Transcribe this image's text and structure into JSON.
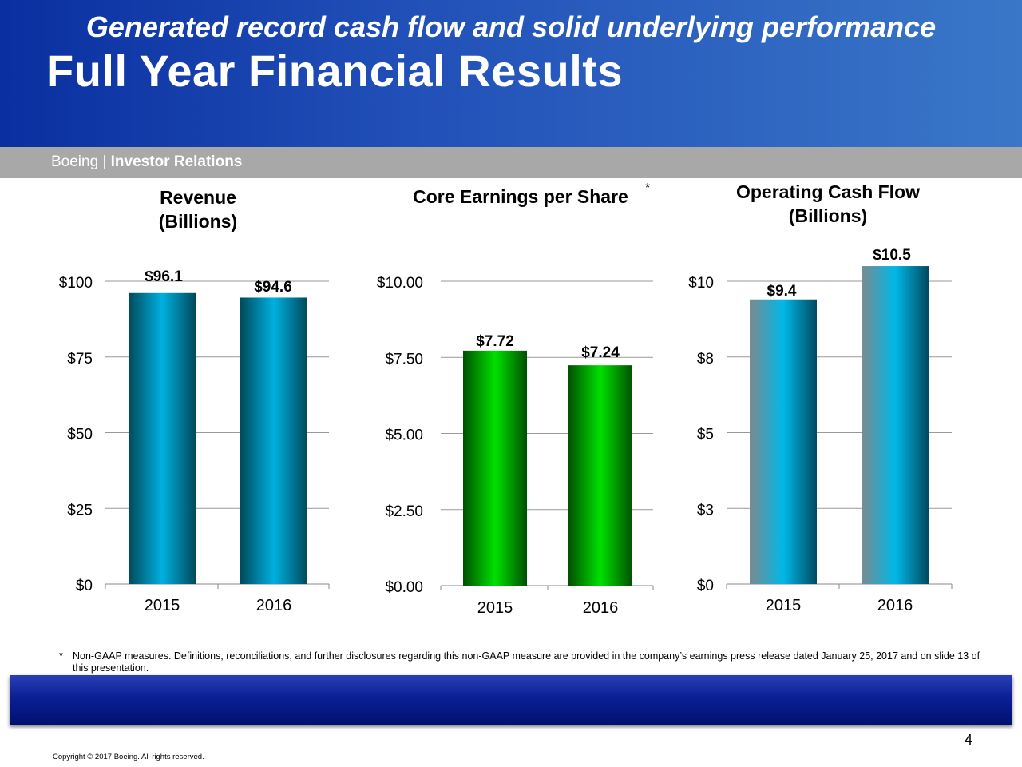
{
  "header": {
    "title": "Full Year Financial Results",
    "brand_prefix": "Boeing | ",
    "brand_bold": "Investor Relations"
  },
  "colors": {
    "header_start": "#0a2fa0",
    "header_end": "#3a77c8",
    "subbar": "#a8a8a8",
    "banner": "#0b1f95",
    "revenue_bar": "#00b0e0",
    "eps_bar": "#00e000",
    "cashflow_bar": "#00b8e8"
  },
  "chart_data": [
    {
      "type": "bar",
      "title": "Revenue",
      "subtitle": "(Billions)",
      "categories": [
        "2015",
        "2016"
      ],
      "values": [
        96.1,
        94.6
      ],
      "data_labels": [
        "$96.1",
        "$94.6"
      ],
      "ylim": [
        0,
        100
      ],
      "yticks": [
        0,
        25,
        50,
        75,
        100
      ],
      "ytick_labels": [
        "$0",
        "$25",
        "$50",
        "$75",
        "$100"
      ],
      "grid": true,
      "color": "#00b0e0"
    },
    {
      "type": "bar",
      "title": "Core Earnings per Share",
      "title_marker": "*",
      "categories": [
        "2015",
        "2016"
      ],
      "values": [
        7.72,
        7.24
      ],
      "data_labels": [
        "$7.72",
        "$7.24"
      ],
      "ylim": [
        0,
        10
      ],
      "yticks": [
        0,
        2.5,
        5,
        7.5,
        10
      ],
      "ytick_labels": [
        "$0.00",
        "$2.50",
        "$5.00",
        "$7.50",
        "$10.00"
      ],
      "grid": true,
      "color": "#00e000"
    },
    {
      "type": "bar",
      "title": "Operating Cash Flow",
      "subtitle": "(Billions)",
      "categories": [
        "2015",
        "2016"
      ],
      "values": [
        9.4,
        10.5
      ],
      "data_labels": [
        "$9.4",
        "$10.5"
      ],
      "ylim": [
        0,
        10
      ],
      "yticks": [
        0,
        2.5,
        5,
        7.5,
        10
      ],
      "ytick_labels": [
        "$0",
        "$3",
        "$5",
        "$8",
        "$10"
      ],
      "grid": true,
      "color": "#00b8e8"
    }
  ],
  "footnote": {
    "marker": "*",
    "text": "Non-GAAP measures. Definitions, reconciliations, and further disclosures regarding this non-GAAP measure are provided in the company’s earnings press release dated January 25, 2017 and on slide 13 of this presentation."
  },
  "banner": {
    "text": "Generated record cash flow and solid underlying performance"
  },
  "page_number": "4",
  "copyright": "Copyright © 2017 Boeing. All rights reserved."
}
